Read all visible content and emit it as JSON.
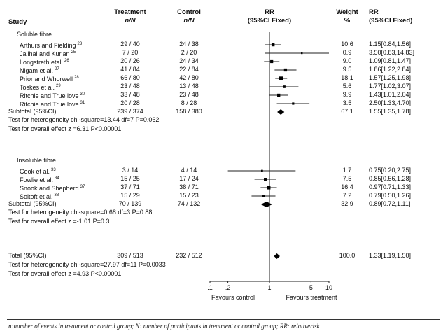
{
  "headers": {
    "study": "Study",
    "treatment": "Treatment",
    "treatment_sub": "n/N",
    "control": "Control",
    "control_sub": "n/N",
    "rr": "RR",
    "rr_sub": "(95%CI Fixed)",
    "weight": "Weight",
    "weight_sub": "%",
    "rr2": "RR",
    "rr2_sub": "(95%CI Fixed)"
  },
  "groups": [
    {
      "title": "Soluble fibre",
      "studies": [
        {
          "name": "Arthurs and Fielding",
          "ref": "23",
          "treatment": "29 / 40",
          "control": "24 / 38",
          "weight": "10.6",
          "rr_text": "1.15[0.84,1.56]"
        },
        {
          "name": "Jalihal and Kurian",
          "ref": "25",
          "treatment": "7 / 20",
          "control": "2 / 20",
          "weight": "0.9",
          "rr_text": "3.50[0.83,14.83]"
        },
        {
          "name": "Longstreth etal.",
          "ref": "26",
          "treatment": "20 / 26",
          "control": "24 / 34",
          "weight": "9.0",
          "rr_text": "1.09[0.81,1.47]"
        },
        {
          "name": "Nigam et al.",
          "ref": "27",
          "treatment": "41 / 84",
          "control": "22 / 84",
          "weight": "9.5",
          "rr_text": "1.86[1.22,2.84]"
        },
        {
          "name": "Prior and Whorwell",
          "ref": "28",
          "treatment": "66 / 80",
          "control": "42 / 80",
          "weight": "18.1",
          "rr_text": "1.57[1.25,1.98]"
        },
        {
          "name": "Toskes et al.",
          "ref": "29",
          "treatment": "23 / 48",
          "control": "13 / 48",
          "weight": "5.6",
          "rr_text": "1.77[1.02,3.07]"
        },
        {
          "name": "Ritchie and True love",
          "ref": "30",
          "treatment": "33 / 48",
          "control": "23 / 48",
          "weight": "9.9",
          "rr_text": "1.43[1.01,2.04]"
        },
        {
          "name": "Ritchie and True love",
          "ref": "31",
          "treatment": "20 / 28",
          "control": "8 / 28",
          "weight": "3.5",
          "rr_text": "2.50[1.33,4.70]"
        }
      ],
      "subtotal": {
        "label": "Subtotal (95%CI)",
        "treatment": "239 / 374",
        "control": "158 / 380",
        "weight": "67.1",
        "rr_text": "1.55[1.35,1.78]"
      },
      "heterogeneity": "Test for heterogeneity chi-square=13.44 df=7 P=0.062",
      "overall": "Test for overall effect z =6.31 P<0.00001"
    },
    {
      "title": "Insoluble fibre",
      "studies": [
        {
          "name": "Cook et al.",
          "ref": "33",
          "treatment": "3 / 14",
          "control": "4 / 14",
          "weight": "1.7",
          "rr_text": "0.75[0.20,2.75]"
        },
        {
          "name": "Fowlie et al.",
          "ref": "34",
          "treatment": "15 / 25",
          "control": "17 / 24",
          "weight": "7.5",
          "rr_text": "0.85[0.56,1.28]"
        },
        {
          "name": "Snook and Shepherd",
          "ref": "37",
          "treatment": "37 / 71",
          "control": "38 / 71",
          "weight": "16.4",
          "rr_text": "0.97[0.71,1.33]"
        },
        {
          "name": "Soltoft et al.",
          "ref": "38",
          "treatment": "15 / 29",
          "control": "15 / 23",
          "weight": "7.2",
          "rr_text": "0.79[0.50,1.26]"
        }
      ],
      "subtotal": {
        "label": "Subtotal (95%CI)",
        "treatment": "70 / 139",
        "control": "74 / 132",
        "weight": "32.9",
        "rr_text": "0.89[0.72,1.11]"
      },
      "heterogeneity": "Test for heterogeneity chi-square=0.68 df=3 P=0.88",
      "overall": "Test for overall effect z =-1.01 P=0.3"
    }
  ],
  "total": {
    "label": "Total (95%CI)",
    "treatment": "309 / 513",
    "control": "232 / 512",
    "weight": "100.0",
    "rr_text": "1.33[1.19,1.50]",
    "heterogeneity": "Test for heterogeneity chi-square=27.97 df=11 P=0.0033",
    "overall": "Test for overall effect z =4.93 P<0.00001"
  },
  "axis": {
    "favours_left": "Favours control",
    "favours_right": "Favours treatment"
  },
  "footnote": "n:number of events in treatment or control group; N: number of participants in treatment or control group; RR: relativerisk",
  "chart_data": {
    "type": "forest",
    "scale": "log",
    "xlim": [
      0.1,
      10
    ],
    "ticks": [
      0.1,
      0.2,
      1,
      5,
      10
    ],
    "tick_labels": [
      ".1",
      ".2",
      "1",
      "5",
      "10"
    ],
    "reference_line": 1,
    "series": [
      {
        "name": "Arthurs and Fielding",
        "rr": 1.15,
        "lo": 0.84,
        "hi": 1.56,
        "weight": 10.6
      },
      {
        "name": "Jalihal and Kurian",
        "rr": 3.5,
        "lo": 0.83,
        "hi": 14.83,
        "weight": 0.9
      },
      {
        "name": "Longstreth etal.",
        "rr": 1.09,
        "lo": 0.81,
        "hi": 1.47,
        "weight": 9.0
      },
      {
        "name": "Nigam et al.",
        "rr": 1.86,
        "lo": 1.22,
        "hi": 2.84,
        "weight": 9.5
      },
      {
        "name": "Prior and Whorwell",
        "rr": 1.57,
        "lo": 1.25,
        "hi": 1.98,
        "weight": 18.1
      },
      {
        "name": "Toskes et al.",
        "rr": 1.77,
        "lo": 1.02,
        "hi": 3.07,
        "weight": 5.6
      },
      {
        "name": "Ritchie and True love",
        "rr": 1.43,
        "lo": 1.01,
        "hi": 2.04,
        "weight": 9.9
      },
      {
        "name": "Ritchie and True love",
        "rr": 2.5,
        "lo": 1.33,
        "hi": 4.7,
        "weight": 3.5
      },
      {
        "name": "Subtotal (95%CI)",
        "rr": 1.55,
        "lo": 1.35,
        "hi": 1.78,
        "weight": 67.1,
        "diamond": true
      },
      {
        "name": "Cook et al.",
        "rr": 0.75,
        "lo": 0.2,
        "hi": 2.75,
        "weight": 1.7
      },
      {
        "name": "Fowlie et al.",
        "rr": 0.85,
        "lo": 0.56,
        "hi": 1.28,
        "weight": 7.5
      },
      {
        "name": "Snook and Shepherd",
        "rr": 0.97,
        "lo": 0.71,
        "hi": 1.33,
        "weight": 16.4
      },
      {
        "name": "Soltoft et al.",
        "rr": 0.79,
        "lo": 0.5,
        "hi": 1.26,
        "weight": 7.2
      },
      {
        "name": "Subtotal (95%CI)",
        "rr": 0.89,
        "lo": 0.72,
        "hi": 1.11,
        "weight": 32.9,
        "diamond": true
      },
      {
        "name": "Total (95%CI)",
        "rr": 1.33,
        "lo": 1.19,
        "hi": 1.5,
        "weight": 100.0,
        "diamond": true
      }
    ]
  }
}
